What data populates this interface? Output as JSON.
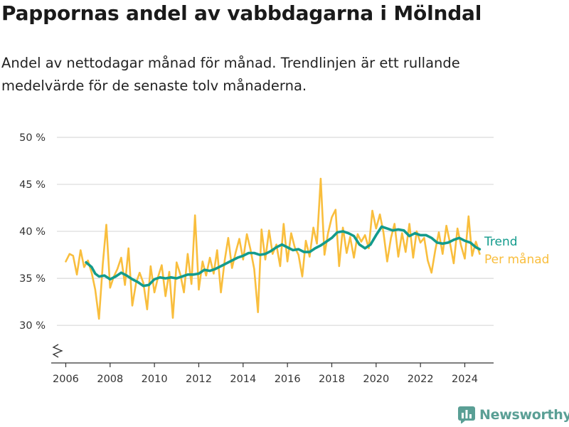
{
  "title": "Pappornas andel av vabbdagarna i Mölndal",
  "subtitle": "Andel av nettodagar månad för månad. Trendlinjen är ett rullande medelvärde för de senaste tolv månaderna.",
  "brand": {
    "name": "Newsworthy",
    "icon": "newsworthy-logo-icon"
  },
  "colors": {
    "trend": "#139b8c",
    "monthly": "#f9be3d",
    "grid": "#d9d9d9",
    "axis": "#333333"
  },
  "chart_data": {
    "type": "line",
    "title": "Pappornas andel av vabbdagarna i Mölndal",
    "xlabel": "",
    "ylabel": "",
    "ylim": [
      26,
      50
    ],
    "xlim": [
      2005.6,
      2025.3
    ],
    "y_ticks": [
      30,
      35,
      40,
      45,
      50
    ],
    "y_tick_labels": [
      "30 %",
      "35 %",
      "40 %",
      "45 %",
      "50 %"
    ],
    "x_ticks": [
      2006,
      2008,
      2010,
      2012,
      2014,
      2016,
      2018,
      2020,
      2022,
      2024
    ],
    "x_tick_labels": [
      "2006",
      "2008",
      "2010",
      "2012",
      "2014",
      "2016",
      "2018",
      "2020",
      "2022",
      "2024"
    ],
    "axis_break": true,
    "grid": "horizontal",
    "legend": "right, inline at line ends",
    "series": [
      {
        "name": "Per månad",
        "color": "#f9be3d",
        "points": [
          [
            2006.0,
            36.8
          ],
          [
            2006.17,
            37.6
          ],
          [
            2006.33,
            37.4
          ],
          [
            2006.5,
            35.4
          ],
          [
            2006.67,
            38.0
          ],
          [
            2006.83,
            36.2
          ],
          [
            2007.0,
            36.9
          ],
          [
            2007.17,
            35.6
          ],
          [
            2007.33,
            33.8
          ],
          [
            2007.5,
            30.7
          ],
          [
            2007.67,
            36.5
          ],
          [
            2007.83,
            40.7
          ],
          [
            2008.0,
            34.0
          ],
          [
            2008.17,
            35.2
          ],
          [
            2008.33,
            36.0
          ],
          [
            2008.5,
            37.2
          ],
          [
            2008.67,
            34.3
          ],
          [
            2008.83,
            38.2
          ],
          [
            2009.0,
            32.1
          ],
          [
            2009.17,
            34.5
          ],
          [
            2009.33,
            35.6
          ],
          [
            2009.5,
            34.5
          ],
          [
            2009.67,
            31.7
          ],
          [
            2009.83,
            36.3
          ],
          [
            2010.0,
            33.5
          ],
          [
            2010.17,
            35.2
          ],
          [
            2010.33,
            36.4
          ],
          [
            2010.5,
            33.1
          ],
          [
            2010.67,
            35.7
          ],
          [
            2010.83,
            30.8
          ],
          [
            2011.0,
            36.7
          ],
          [
            2011.17,
            35.4
          ],
          [
            2011.33,
            33.5
          ],
          [
            2011.5,
            37.6
          ],
          [
            2011.67,
            34.4
          ],
          [
            2011.83,
            41.7
          ],
          [
            2012.0,
            33.8
          ],
          [
            2012.17,
            36.8
          ],
          [
            2012.33,
            35.3
          ],
          [
            2012.5,
            37.2
          ],
          [
            2012.67,
            35.5
          ],
          [
            2012.83,
            38.0
          ],
          [
            2013.0,
            33.5
          ],
          [
            2013.17,
            36.9
          ],
          [
            2013.33,
            39.3
          ],
          [
            2013.5,
            36.1
          ],
          [
            2013.67,
            37.8
          ],
          [
            2013.83,
            39.2
          ],
          [
            2014.0,
            37.0
          ],
          [
            2014.17,
            39.7
          ],
          [
            2014.33,
            38.1
          ],
          [
            2014.5,
            36.0
          ],
          [
            2014.67,
            31.4
          ],
          [
            2014.83,
            40.2
          ],
          [
            2015.0,
            37.0
          ],
          [
            2015.17,
            40.1
          ],
          [
            2015.33,
            37.6
          ],
          [
            2015.5,
            38.6
          ],
          [
            2015.67,
            36.3
          ],
          [
            2015.83,
            40.8
          ],
          [
            2016.0,
            36.8
          ],
          [
            2016.17,
            39.8
          ],
          [
            2016.33,
            38.3
          ],
          [
            2016.5,
            37.5
          ],
          [
            2016.67,
            35.2
          ],
          [
            2016.83,
            39.0
          ],
          [
            2017.0,
            37.3
          ],
          [
            2017.17,
            40.4
          ],
          [
            2017.33,
            38.7
          ],
          [
            2017.5,
            45.6
          ],
          [
            2017.67,
            37.5
          ],
          [
            2017.83,
            39.8
          ],
          [
            2018.0,
            41.5
          ],
          [
            2018.17,
            42.3
          ],
          [
            2018.33,
            36.3
          ],
          [
            2018.5,
            40.4
          ],
          [
            2018.67,
            37.7
          ],
          [
            2018.83,
            39.4
          ],
          [
            2019.0,
            37.2
          ],
          [
            2019.17,
            39.7
          ],
          [
            2019.33,
            38.9
          ],
          [
            2019.5,
            39.6
          ],
          [
            2019.67,
            38.2
          ],
          [
            2019.83,
            42.2
          ],
          [
            2020.0,
            40.3
          ],
          [
            2020.17,
            41.8
          ],
          [
            2020.33,
            39.9
          ],
          [
            2020.5,
            36.8
          ],
          [
            2020.67,
            39.3
          ],
          [
            2020.83,
            40.8
          ],
          [
            2021.0,
            37.3
          ],
          [
            2021.17,
            39.8
          ],
          [
            2021.33,
            37.8
          ],
          [
            2021.5,
            40.8
          ],
          [
            2021.67,
            37.2
          ],
          [
            2021.83,
            40.0
          ],
          [
            2022.0,
            38.8
          ],
          [
            2022.17,
            39.3
          ],
          [
            2022.33,
            36.9
          ],
          [
            2022.5,
            35.6
          ],
          [
            2022.67,
            38.0
          ],
          [
            2022.83,
            39.9
          ],
          [
            2023.0,
            37.6
          ],
          [
            2023.17,
            40.6
          ],
          [
            2023.33,
            38.8
          ],
          [
            2023.5,
            36.6
          ],
          [
            2023.67,
            40.3
          ],
          [
            2023.83,
            38.5
          ],
          [
            2024.0,
            37.1
          ],
          [
            2024.17,
            41.6
          ],
          [
            2024.33,
            37.4
          ],
          [
            2024.5,
            38.9
          ],
          [
            2024.67,
            37.6
          ]
        ]
      },
      {
        "name": "Trend",
        "color": "#139b8c",
        "points": [
          [
            2006.92,
            36.7
          ],
          [
            2007.17,
            36.2
          ],
          [
            2007.33,
            35.5
          ],
          [
            2007.5,
            35.2
          ],
          [
            2007.75,
            35.3
          ],
          [
            2008.0,
            34.9
          ],
          [
            2008.25,
            35.2
          ],
          [
            2008.5,
            35.6
          ],
          [
            2008.75,
            35.3
          ],
          [
            2009.0,
            34.9
          ],
          [
            2009.25,
            34.6
          ],
          [
            2009.5,
            34.2
          ],
          [
            2009.75,
            34.3
          ],
          [
            2010.0,
            34.9
          ],
          [
            2010.25,
            35.1
          ],
          [
            2010.5,
            35.0
          ],
          [
            2010.75,
            35.1
          ],
          [
            2011.0,
            35.0
          ],
          [
            2011.25,
            35.2
          ],
          [
            2011.5,
            35.4
          ],
          [
            2011.75,
            35.4
          ],
          [
            2012.0,
            35.5
          ],
          [
            2012.25,
            35.9
          ],
          [
            2012.5,
            35.8
          ],
          [
            2012.75,
            36.0
          ],
          [
            2013.0,
            36.3
          ],
          [
            2013.25,
            36.6
          ],
          [
            2013.5,
            36.9
          ],
          [
            2013.75,
            37.2
          ],
          [
            2014.0,
            37.4
          ],
          [
            2014.25,
            37.7
          ],
          [
            2014.5,
            37.7
          ],
          [
            2014.75,
            37.5
          ],
          [
            2015.0,
            37.6
          ],
          [
            2015.25,
            37.9
          ],
          [
            2015.5,
            38.3
          ],
          [
            2015.75,
            38.6
          ],
          [
            2016.0,
            38.3
          ],
          [
            2016.25,
            38.0
          ],
          [
            2016.5,
            38.1
          ],
          [
            2016.75,
            37.8
          ],
          [
            2017.0,
            37.8
          ],
          [
            2017.25,
            38.2
          ],
          [
            2017.5,
            38.5
          ],
          [
            2017.75,
            38.9
          ],
          [
            2018.0,
            39.3
          ],
          [
            2018.25,
            39.9
          ],
          [
            2018.5,
            40.0
          ],
          [
            2018.75,
            39.8
          ],
          [
            2019.0,
            39.5
          ],
          [
            2019.25,
            38.6
          ],
          [
            2019.5,
            38.2
          ],
          [
            2019.75,
            38.6
          ],
          [
            2020.0,
            39.6
          ],
          [
            2020.25,
            40.5
          ],
          [
            2020.5,
            40.3
          ],
          [
            2020.75,
            40.1
          ],
          [
            2021.0,
            40.2
          ],
          [
            2021.25,
            40.1
          ],
          [
            2021.5,
            39.5
          ],
          [
            2021.75,
            39.8
          ],
          [
            2022.0,
            39.6
          ],
          [
            2022.25,
            39.6
          ],
          [
            2022.5,
            39.3
          ],
          [
            2022.75,
            38.8
          ],
          [
            2023.0,
            38.7
          ],
          [
            2023.25,
            38.8
          ],
          [
            2023.5,
            39.1
          ],
          [
            2023.75,
            39.3
          ],
          [
            2024.0,
            39.0
          ],
          [
            2024.25,
            38.8
          ],
          [
            2024.5,
            38.3
          ],
          [
            2024.67,
            38.1
          ]
        ]
      }
    ]
  }
}
